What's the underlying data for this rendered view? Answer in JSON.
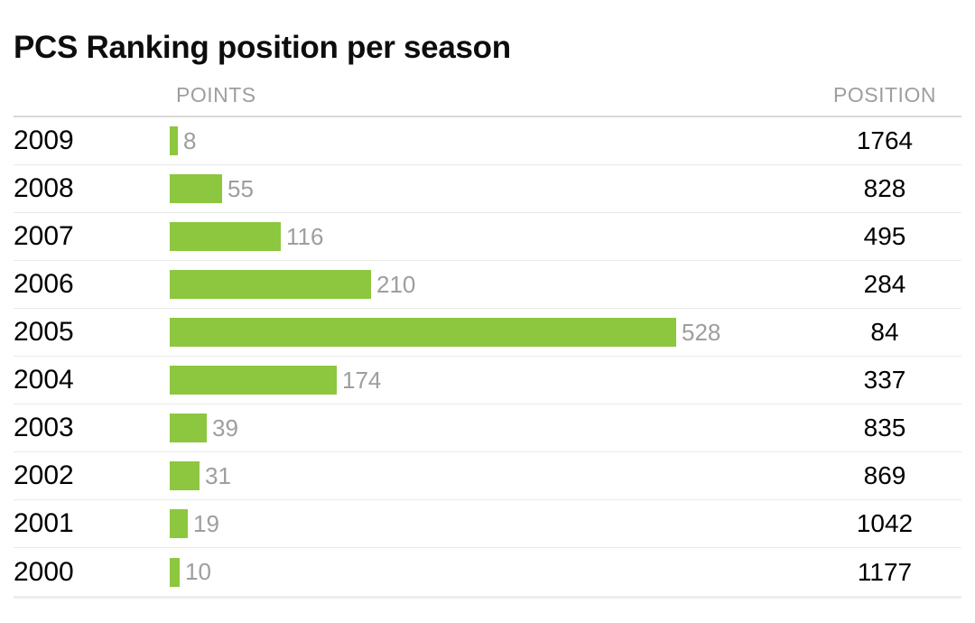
{
  "title": "PCS Ranking position per season",
  "columns": {
    "points": "POINTS",
    "position": "POSITION"
  },
  "colors": {
    "bar": "#8dc63f",
    "muted_text": "#9e9e9e",
    "text": "#0d0d0d",
    "header_divider": "#d9d9d9",
    "row_divider": "#e9e9e9"
  },
  "chart_data": {
    "type": "bar",
    "orientation": "horizontal",
    "title": "PCS Ranking position per season",
    "categories": [
      "2009",
      "2008",
      "2007",
      "2006",
      "2005",
      "2004",
      "2003",
      "2002",
      "2001",
      "2000"
    ],
    "series": [
      {
        "name": "POINTS",
        "values": [
          8,
          55,
          116,
          210,
          528,
          174,
          39,
          31,
          19,
          10
        ]
      },
      {
        "name": "POSITION",
        "values": [
          1764,
          828,
          495,
          284,
          84,
          337,
          835,
          869,
          1042,
          1177
        ]
      }
    ],
    "xlim": [
      0,
      528
    ],
    "grid": false,
    "legend": false,
    "value_labels": true
  }
}
